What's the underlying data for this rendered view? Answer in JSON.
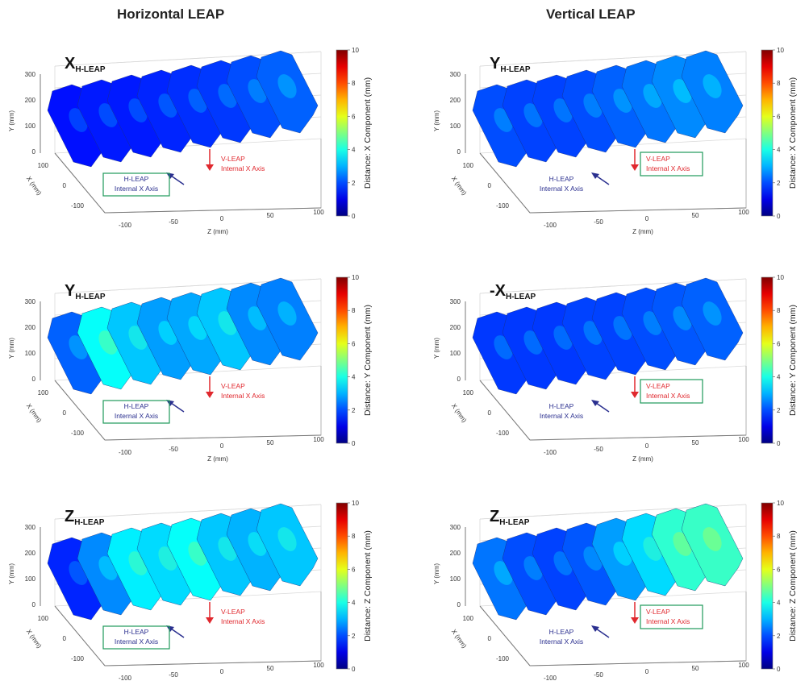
{
  "columns": {
    "left_title": "Horizontal LEAP",
    "right_title": "Vertical LEAP"
  },
  "axes": {
    "y_label": "Y (mm)",
    "x_label": "X (mm)",
    "z_label": "Z (mm)",
    "y_ticks": [
      "300",
      "200",
      "100",
      "0"
    ],
    "x_ticks": [
      "100",
      "0",
      "-100"
    ],
    "z_ticks": [
      "-100",
      "-50",
      "0",
      "50",
      "100"
    ]
  },
  "colorbar": {
    "ticks": [
      "10",
      "8",
      "6",
      "4",
      "2",
      "0"
    ],
    "range": [
      0,
      10
    ]
  },
  "annotations": {
    "h_leap": {
      "line1": "H-LEAP",
      "line2": "Internal X Axis"
    },
    "v_leap": {
      "line1": "V-LEAP",
      "line2": "Internal X Axis"
    }
  },
  "colors": {
    "h_leap": "#2a2f8f",
    "v_leap": "#e0282e",
    "box": "#1f9a5a"
  },
  "chart_data": [
    {
      "type": "heatmap",
      "column": "Horizontal LEAP",
      "label_main": "X",
      "label_sub": "H-LEAP",
      "colorbar_label": "Distance: X Component (mm)",
      "boxed": "h",
      "panel_values": [
        1.4,
        1.5,
        1.5,
        1.6,
        1.7,
        1.8,
        2.0,
        2.2
      ]
    },
    {
      "type": "heatmap",
      "column": "Vertical LEAP",
      "label_main": "Y",
      "label_sub": "H-LEAP",
      "colorbar_label": "Distance: X Component (mm)",
      "boxed": "v",
      "panel_values": [
        2.0,
        1.9,
        1.9,
        2.0,
        2.2,
        2.4,
        2.6,
        2.5
      ]
    },
    {
      "type": "heatmap",
      "column": "Horizontal LEAP",
      "label_main": "Y",
      "label_sub": "H-LEAP",
      "colorbar_label": "Distance: Y Component (mm)",
      "boxed": "h",
      "panel_values": [
        2.2,
        3.8,
        3.2,
        2.8,
        2.9,
        3.2,
        2.6,
        2.5
      ]
    },
    {
      "type": "heatmap",
      "column": "Vertical LEAP",
      "label_main": "-X",
      "label_sub": "H-LEAP",
      "colorbar_label": "Distance: Y Component (mm)",
      "boxed": "v",
      "panel_values": [
        1.8,
        1.8,
        1.8,
        1.9,
        1.9,
        2.0,
        2.1,
        2.2
      ]
    },
    {
      "type": "heatmap",
      "column": "Horizontal LEAP",
      "label_main": "Z",
      "label_sub": "H-LEAP",
      "colorbar_label": "Distance: Z Component (mm)",
      "boxed": "h",
      "panel_values": [
        1.6,
        2.6,
        3.6,
        3.4,
        3.8,
        3.2,
        3.0,
        3.2
      ]
    },
    {
      "type": "heatmap",
      "column": "Vertical LEAP",
      "label_main": "Z",
      "label_sub": "H-LEAP",
      "colorbar_label": "Distance: Z Component (mm)",
      "boxed": "v",
      "panel_values": [
        2.4,
        2.0,
        1.9,
        2.1,
        2.8,
        3.4,
        4.2,
        4.3
      ]
    }
  ]
}
